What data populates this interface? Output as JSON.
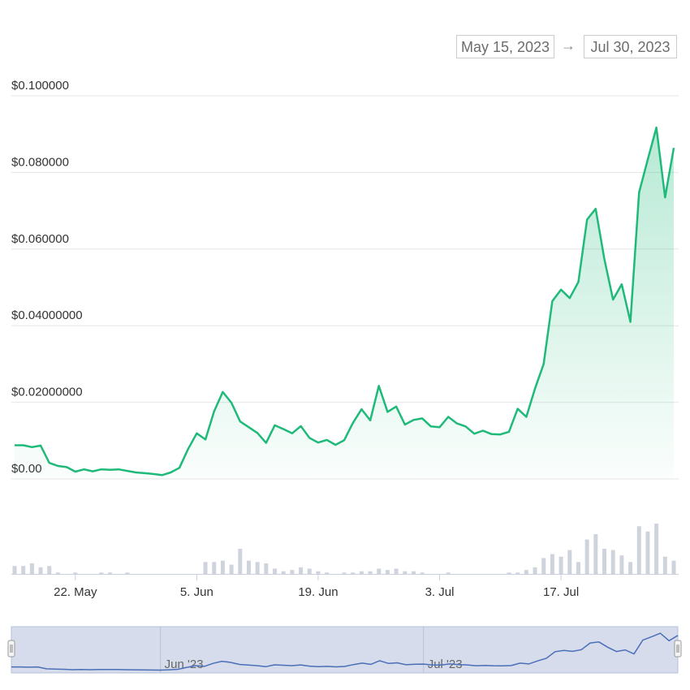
{
  "range": {
    "from": "May 15, 2023",
    "arrow": "→",
    "to": "Jul 30, 2023"
  },
  "colors": {
    "line": "#1fba7a",
    "volume": "#cfd3dc",
    "navigator_line": "#4a6fb8",
    "navigator_bg": "#d6dceb"
  },
  "chart_data": {
    "type": "area",
    "x_unit": "date",
    "x": [
      "2023-05-15",
      "2023-05-16",
      "2023-05-17",
      "2023-05-18",
      "2023-05-19",
      "2023-05-20",
      "2023-05-21",
      "2023-05-22",
      "2023-05-23",
      "2023-05-24",
      "2023-05-25",
      "2023-05-26",
      "2023-05-27",
      "2023-05-28",
      "2023-05-29",
      "2023-05-30",
      "2023-05-31",
      "2023-06-01",
      "2023-06-02",
      "2023-06-03",
      "2023-06-04",
      "2023-06-05",
      "2023-06-06",
      "2023-06-07",
      "2023-06-08",
      "2023-06-09",
      "2023-06-10",
      "2023-06-11",
      "2023-06-12",
      "2023-06-13",
      "2023-06-14",
      "2023-06-15",
      "2023-06-16",
      "2023-06-17",
      "2023-06-18",
      "2023-06-19",
      "2023-06-20",
      "2023-06-21",
      "2023-06-22",
      "2023-06-23",
      "2023-06-24",
      "2023-06-25",
      "2023-06-26",
      "2023-06-27",
      "2023-06-28",
      "2023-06-29",
      "2023-06-30",
      "2023-07-01",
      "2023-07-02",
      "2023-07-03",
      "2023-07-04",
      "2023-07-05",
      "2023-07-06",
      "2023-07-07",
      "2023-07-08",
      "2023-07-09",
      "2023-07-10",
      "2023-07-11",
      "2023-07-12",
      "2023-07-13",
      "2023-07-14",
      "2023-07-15",
      "2023-07-16",
      "2023-07-17",
      "2023-07-18",
      "2023-07-19",
      "2023-07-20",
      "2023-07-21",
      "2023-07-22",
      "2023-07-23",
      "2023-07-24",
      "2023-07-25",
      "2023-07-26",
      "2023-07-27",
      "2023-07-28",
      "2023-07-29",
      "2023-07-30"
    ],
    "series": [
      {
        "values": [
          0.0088,
          0.0088,
          0.0083,
          0.0087,
          0.0042,
          0.0034,
          0.0031,
          0.0019,
          0.0025,
          0.002,
          0.0025,
          0.0024,
          0.0025,
          0.0021,
          0.0017,
          0.0015,
          0.0013,
          0.001,
          0.0017,
          0.0029,
          0.0078,
          0.0119,
          0.0103,
          0.0176,
          0.0227,
          0.0199,
          0.015,
          0.0135,
          0.012,
          0.0094,
          0.014,
          0.013,
          0.0119,
          0.0138,
          0.0107,
          0.0095,
          0.0102,
          0.0089,
          0.0101,
          0.0146,
          0.0182,
          0.0153,
          0.0243,
          0.0175,
          0.0189,
          0.0142,
          0.0154,
          0.0158,
          0.0137,
          0.0135,
          0.0162,
          0.0145,
          0.0137,
          0.0118,
          0.0126,
          0.0117,
          0.0116,
          0.0123,
          0.0183,
          0.0162,
          0.0236,
          0.03,
          0.0464,
          0.0494,
          0.0472,
          0.0514,
          0.0677,
          0.0705,
          0.0574,
          0.0468,
          0.0508,
          0.041,
          0.0748,
          0.0833,
          0.0917,
          0.0735,
          0.0864
        ]
      }
    ],
    "volume": [
      6,
      6,
      8,
      5,
      6,
      1,
      0,
      1,
      0,
      0,
      1,
      1,
      0,
      1,
      0,
      0,
      0,
      0,
      0,
      0,
      0,
      0,
      9,
      9,
      10,
      7,
      19,
      10,
      9,
      8,
      4,
      2,
      3,
      5,
      4,
      2,
      1,
      0,
      1,
      1,
      2,
      2,
      4,
      3,
      4,
      2,
      2,
      1,
      0,
      0,
      1,
      0,
      0,
      0,
      0,
      0,
      0,
      1,
      1,
      3,
      5,
      12,
      15,
      13,
      18,
      9,
      26,
      30,
      19,
      18,
      14,
      9,
      36,
      32,
      38,
      13,
      10
    ],
    "yticks": [
      {
        "value": 0.1,
        "label": "$0.100000"
      },
      {
        "value": 0.08,
        "label": "$0.080000"
      },
      {
        "value": 0.06,
        "label": "$0.060000"
      },
      {
        "value": 0.04,
        "label": "$0.04000000"
      },
      {
        "value": 0.02,
        "label": "$0.02000000"
      },
      {
        "value": 0.0,
        "label": "$0.00"
      }
    ],
    "xticks": [
      {
        "date": "2023-05-22",
        "label": "22. May"
      },
      {
        "date": "2023-06-05",
        "label": "5. Jun"
      },
      {
        "date": "2023-06-19",
        "label": "19. Jun"
      },
      {
        "date": "2023-07-03",
        "label": "3. Jul"
      },
      {
        "date": "2023-07-17",
        "label": "17. Jul"
      }
    ],
    "ylim": [
      0,
      0.1
    ],
    "grid": true,
    "navigator": {
      "ticks": [
        {
          "date": "2023-06-01",
          "label": "Jun '23"
        },
        {
          "date": "2023-07-01",
          "label": "Jul '23"
        }
      ]
    }
  }
}
